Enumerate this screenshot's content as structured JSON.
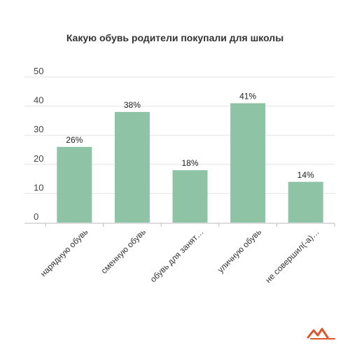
{
  "chart_data": {
    "type": "bar",
    "title": "Какую обувь родители покупали для школы",
    "xlabel": "",
    "ylabel": "",
    "categories": [
      "нарядную обувь",
      "сменную обувь",
      "обувь для занят…",
      "уличную обувь",
      "не совершил(-а)…"
    ],
    "values": [
      26,
      38,
      18,
      41,
      14
    ],
    "value_labels": [
      "26%",
      "38%",
      "18%",
      "41%",
      "14%"
    ],
    "yticks": [
      "0",
      "10",
      "20",
      "30",
      "40",
      "50"
    ],
    "ylim": [
      0,
      50
    ],
    "grid": "horizontal",
    "legend": "none",
    "bar_color": "#8fc3a5",
    "grid_color": "#e3e3e3",
    "axis_color": "#bbbbbb"
  },
  "logo": {
    "icon": "brand-logo-icon",
    "color": "#e0542b"
  }
}
